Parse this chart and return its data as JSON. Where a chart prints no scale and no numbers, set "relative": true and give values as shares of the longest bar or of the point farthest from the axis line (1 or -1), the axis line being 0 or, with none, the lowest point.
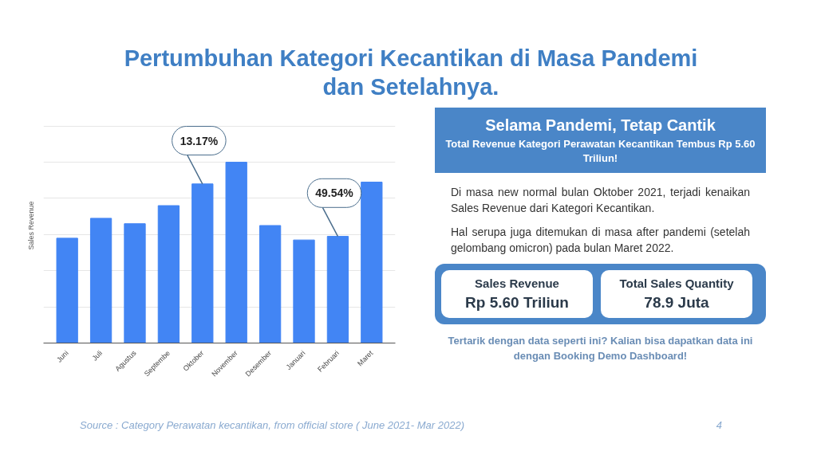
{
  "chart_data": {
    "type": "bar",
    "title": "Pertumbuhan Kategori Kecantikan di Masa Pandemi dan Setelahnya.",
    "subtitle": "Selama Pandemi, Tetap Cantik",
    "ylabel": "Sales Revenue",
    "categories": [
      "Juni",
      "Juli",
      "Agustus",
      "Septembe",
      "Oktober",
      "November",
      "Desember",
      "Januari",
      "Februari",
      "Maret"
    ],
    "values": [
      0.58,
      0.69,
      0.66,
      0.76,
      0.88,
      1,
      0.65,
      0.57,
      0.59,
      0.89
    ],
    "color": "#4285f4",
    "relative": true,
    "grid": "y",
    "annotations": [
      {
        "text": "13.17%",
        "x": "Oktober",
        "y": 0.88
      },
      {
        "text": "49.54%",
        "x": "Februari",
        "y": 0.59
      },
      "Total Revenue Kategori Perawatan Kecantikan Tembus Rp 5.60 Triliun!",
      "Di masa new normal bulan Oktober 2021, terjadi kenaikan Sales Revenue dari Kategori Kecantikan.",
      "Hal serupa juga ditemukan di masa after pandemi (setelah gelombang omicron) pada bulan Maret 2022.",
      "Sales Revenue",
      "Rp 5.60 Triliun",
      "Total Sales Quantity",
      "78.9 Juta",
      "Tertarik dengan data seperti ini? Kalian bisa dapatkan data ini dengan Booking Demo Dashboard!",
      "Source : Category Perawatan kecantikan, from official store ( June 2021- Mar 2022)",
      "4"
    ]
  }
}
